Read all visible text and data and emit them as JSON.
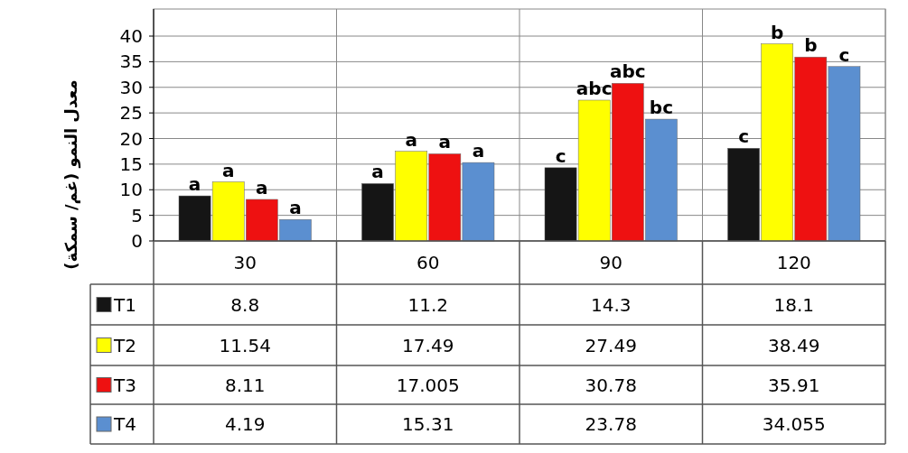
{
  "chart_data": {
    "type": "bar",
    "ylabel": "معدل النمو (غم/ سمكة)",
    "categories": [
      "30",
      "60",
      "90",
      "120"
    ],
    "series": [
      {
        "name": "T1",
        "color": "#151515",
        "values": [
          8.8,
          11.2,
          14.3,
          18.1
        ]
      },
      {
        "name": "T2",
        "color": "#ffff00",
        "values": [
          11.54,
          17.49,
          27.49,
          38.49
        ]
      },
      {
        "name": "T3",
        "color": "#ee1111",
        "values": [
          8.11,
          17.005,
          30.78,
          35.91
        ]
      },
      {
        "name": "T4",
        "color": "#5b8fd0",
        "values": [
          4.19,
          15.31,
          23.78,
          34.055
        ]
      }
    ],
    "ylim": [
      0,
      40
    ],
    "yticks": [
      0,
      5,
      10,
      15,
      20,
      25,
      30,
      35,
      40
    ],
    "grid": true,
    "legend": "left",
    "data_labels": true,
    "annotations": [
      "a",
      "a",
      "a",
      "a",
      "a",
      "a",
      "a",
      "a",
      "c",
      "abc",
      "abc",
      "bc",
      "c",
      "b",
      "b",
      "c"
    ]
  }
}
